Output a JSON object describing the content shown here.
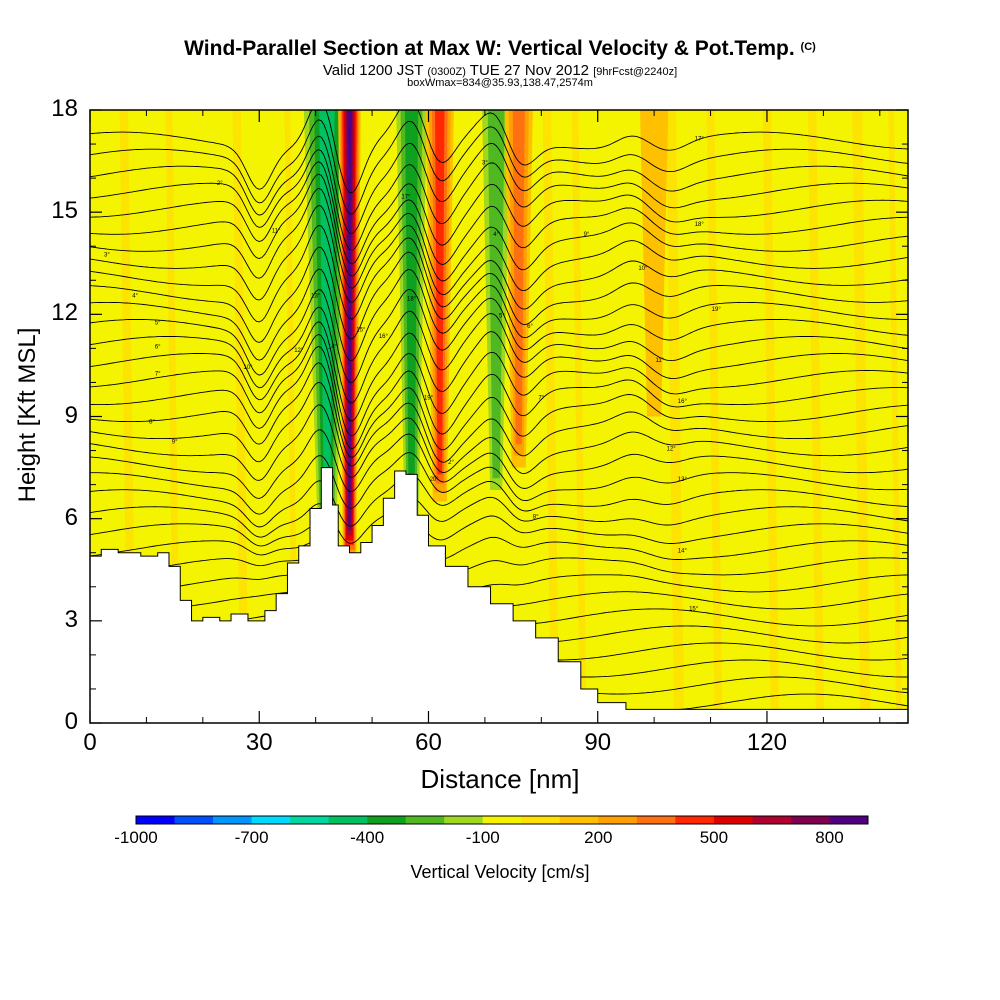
{
  "title": {
    "main": "Wind-Parallel Section at Max W: Vertical Velocity & Pot.Temp.",
    "main_suffix": "(C)",
    "valid_a": "Valid 1200 JST",
    "valid_b": "(0300Z)",
    "valid_c": "TUE 27 Nov 2012",
    "valid_d": "[9hrFcst@2240z]",
    "box": "boxWmax=834@35.93,138.47,2574m"
  },
  "chart_data": {
    "type": "heatmap",
    "xlabel": "Distance [nm]",
    "ylabel": "Height [Kft MSL]",
    "xlim": [
      0,
      145
    ],
    "ylim": [
      0,
      18
    ],
    "x_ticks": [
      0,
      30,
      60,
      90,
      120
    ],
    "y_ticks": [
      0,
      3,
      6,
      9,
      12,
      15,
      18
    ],
    "colorbar": {
      "title": "Vertical Velocity [cm/s]",
      "tick_labels": [
        "-1000",
        "-700",
        "-400",
        "-100",
        "200",
        "500",
        "800"
      ],
      "tick_values": [
        -1000,
        -700,
        -400,
        -100,
        200,
        500,
        800
      ],
      "range": [
        -1000,
        900
      ],
      "colors": [
        "#0000ff",
        "#0050ff",
        "#0096ff",
        "#00dcff",
        "#00d8a0",
        "#00c060",
        "#10a020",
        "#50b820",
        "#a0d820",
        "#f4f400",
        "#ffe000",
        "#ffc000",
        "#ffa000",
        "#ff7010",
        "#ff2800",
        "#e00000",
        "#b00030",
        "#800050",
        "#500080"
      ]
    },
    "terrain": [
      [
        0,
        4.9
      ],
      [
        2,
        5.1
      ],
      [
        5,
        5.0
      ],
      [
        9,
        4.9
      ],
      [
        12,
        5.0
      ],
      [
        14,
        4.6
      ],
      [
        16,
        3.6
      ],
      [
        18,
        3.0
      ],
      [
        20,
        3.1
      ],
      [
        23,
        3.0
      ],
      [
        25,
        3.2
      ],
      [
        28,
        3.0
      ],
      [
        31,
        3.3
      ],
      [
        33,
        3.8
      ],
      [
        35,
        4.7
      ],
      [
        37,
        5.2
      ],
      [
        39,
        6.3
      ],
      [
        41,
        7.5
      ],
      [
        43,
        6.4
      ],
      [
        44,
        5.2
      ],
      [
        46,
        5.0
      ],
      [
        48,
        5.3
      ],
      [
        50,
        5.8
      ],
      [
        52,
        6.6
      ],
      [
        54,
        7.4
      ],
      [
        56,
        7.3
      ],
      [
        58,
        6.1
      ],
      [
        60,
        5.2
      ],
      [
        63,
        4.6
      ],
      [
        67,
        4.0
      ],
      [
        71,
        3.5
      ],
      [
        75,
        3.0
      ],
      [
        79,
        2.5
      ],
      [
        83,
        1.8
      ],
      [
        87,
        1.0
      ],
      [
        90,
        0.6
      ],
      [
        95,
        0.4
      ],
      [
        145,
        0.4
      ]
    ],
    "updrafts_w": [
      {
        "x": 46,
        "w": 850
      },
      {
        "x": 62,
        "w": 400
      },
      {
        "x": 76,
        "w": 350
      },
      {
        "x": 100,
        "w": 150
      }
    ],
    "downdrafts_w": [
      {
        "x": 42,
        "w": -500
      },
      {
        "x": 57,
        "w": -400
      },
      {
        "x": 72,
        "w": -350
      },
      {
        "x": 95,
        "w": -150
      }
    ],
    "contour_labels": [
      "2°",
      "3°",
      "4°",
      "5°",
      "6°",
      "7°",
      "8°",
      "9°",
      "10°",
      "11°",
      "12°",
      "13°",
      "14°",
      "15°",
      "16°",
      "17°",
      "18°",
      "19°",
      "20°"
    ]
  },
  "colors": {
    "background": "#ffffff",
    "terrain": "#ffffff",
    "field_base": "#f4f400",
    "contour": "#000000"
  }
}
